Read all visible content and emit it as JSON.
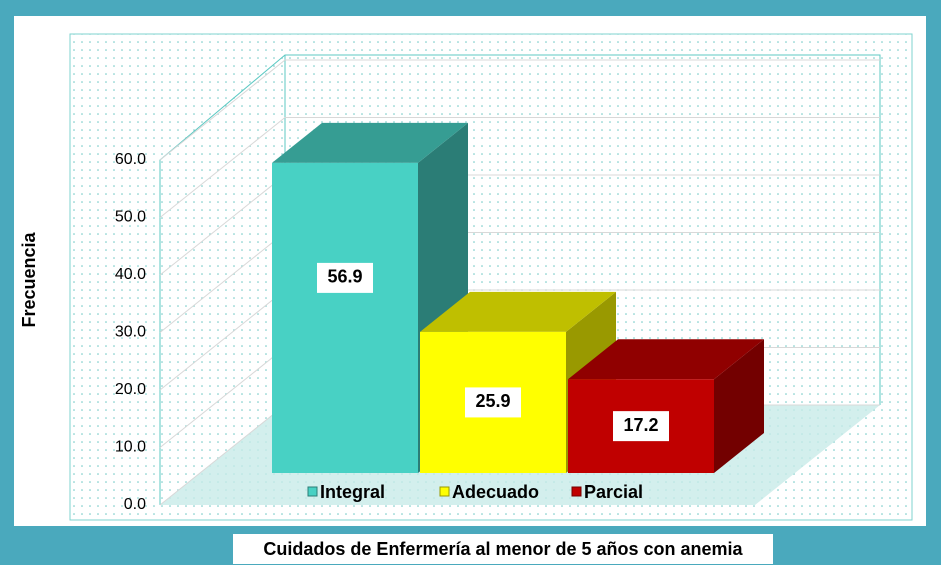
{
  "chart_data": {
    "type": "bar3d",
    "xlabel": "Cuidados de Enfermería al menor de 5 años con anemia",
    "ylabel": "Frecuencia",
    "categories": [
      "Integral",
      "Adecuado",
      "Parcial"
    ],
    "values": [
      56.9,
      25.9,
      17.2
    ],
    "colors": [
      "#48d1c4",
      "#ffff00",
      "#c00000"
    ],
    "ylim": [
      0,
      60
    ],
    "yticks": [
      {
        "value": 0,
        "label": "0.0"
      },
      {
        "value": 10,
        "label": "10.0"
      },
      {
        "value": 20,
        "label": "20.0"
      },
      {
        "value": 30,
        "label": "30.0"
      },
      {
        "value": 40,
        "label": "40.0"
      },
      {
        "value": 50,
        "label": "50.0"
      },
      {
        "value": 60,
        "label": "60.0"
      }
    ],
    "grid": true
  }
}
